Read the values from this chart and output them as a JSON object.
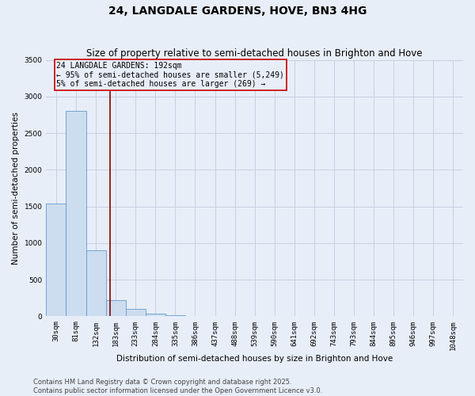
{
  "title": "24, LANGDALE GARDENS, HOVE, BN3 4HG",
  "subtitle": "Size of property relative to semi-detached houses in Brighton and Hove",
  "xlabel": "Distribution of semi-detached houses by size in Brighton and Hove",
  "ylabel": "Number of semi-detached properties",
  "categories": [
    "30sqm",
    "81sqm",
    "132sqm",
    "183sqm",
    "233sqm",
    "284sqm",
    "335sqm",
    "386sqm",
    "437sqm",
    "488sqm",
    "539sqm",
    "590sqm",
    "641sqm",
    "692sqm",
    "743sqm",
    "793sqm",
    "844sqm",
    "895sqm",
    "946sqm",
    "997sqm",
    "1048sqm"
  ],
  "values": [
    1540,
    2800,
    900,
    220,
    100,
    40,
    20,
    0,
    0,
    0,
    0,
    0,
    0,
    0,
    0,
    0,
    0,
    0,
    0,
    0,
    0
  ],
  "bar_color": "#ccddf0",
  "bar_edge_color": "#6699cc",
  "vline_color": "#880000",
  "vline_position": 2.72,
  "annotation_box_color": "#cc0000",
  "ylim": [
    0,
    3500
  ],
  "yticks": [
    0,
    500,
    1000,
    1500,
    2000,
    2500,
    3000,
    3500
  ],
  "background_color": "#e8eef8",
  "grid_color": "#c8d0e0",
  "footer_line1": "Contains HM Land Registry data © Crown copyright and database right 2025.",
  "footer_line2": "Contains public sector information licensed under the Open Government Licence v3.0.",
  "property_label": "24 LANGDALE GARDENS: 192sqm",
  "pct_smaller_label": "← 95% of semi-detached houses are smaller (5,249)",
  "pct_larger_label": "5% of semi-detached houses are larger (269) →",
  "title_fontsize": 10,
  "subtitle_fontsize": 8.5,
  "axis_label_fontsize": 7.5,
  "tick_fontsize": 6.5,
  "annotation_fontsize": 7,
  "footer_fontsize": 6
}
